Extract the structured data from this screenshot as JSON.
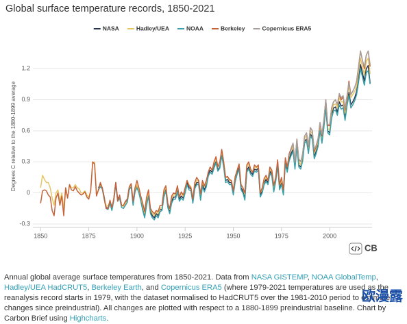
{
  "chart_data": {
    "type": "line",
    "title": "Global surface temperature records, 1850-2021",
    "y_label": "Degrees C relative to the 1880-1899 average",
    "xlim": [
      1846,
      2022
    ],
    "xticks": [
      1850,
      1875,
      1900,
      1925,
      1950,
      1975,
      2000
    ],
    "ylim": [
      -0.3,
      1.4
    ],
    "yticks": [
      -0.3,
      0,
      0.3,
      0.6,
      0.9,
      1.2
    ],
    "grid": true,
    "x": [
      1850,
      1851,
      1852,
      1853,
      1854,
      1855,
      1856,
      1857,
      1858,
      1859,
      1860,
      1861,
      1862,
      1863,
      1864,
      1865,
      1866,
      1867,
      1868,
      1869,
      1870,
      1871,
      1872,
      1873,
      1874,
      1875,
      1876,
      1877,
      1878,
      1879,
      1880,
      1881,
      1882,
      1883,
      1884,
      1885,
      1886,
      1887,
      1888,
      1889,
      1890,
      1891,
      1892,
      1893,
      1894,
      1895,
      1896,
      1897,
      1898,
      1899,
      1900,
      1901,
      1902,
      1903,
      1904,
      1905,
      1906,
      1907,
      1908,
      1909,
      1910,
      1911,
      1912,
      1913,
      1914,
      1915,
      1916,
      1917,
      1918,
      1919,
      1920,
      1921,
      1922,
      1923,
      1924,
      1925,
      1926,
      1927,
      1928,
      1929,
      1930,
      1931,
      1932,
      1933,
      1934,
      1935,
      1936,
      1937,
      1938,
      1939,
      1940,
      1941,
      1942,
      1943,
      1944,
      1945,
      1946,
      1947,
      1948,
      1949,
      1950,
      1951,
      1952,
      1953,
      1954,
      1955,
      1956,
      1957,
      1958,
      1959,
      1960,
      1961,
      1962,
      1963,
      1964,
      1965,
      1966,
      1967,
      1968,
      1969,
      1970,
      1971,
      1972,
      1973,
      1974,
      1975,
      1976,
      1977,
      1978,
      1979,
      1980,
      1981,
      1982,
      1983,
      1984,
      1985,
      1986,
      1987,
      1988,
      1989,
      1990,
      1991,
      1992,
      1993,
      1994,
      1995,
      1996,
      1997,
      1998,
      1999,
      2000,
      2001,
      2002,
      2003,
      2004,
      2005,
      2006,
      2007,
      2008,
      2009,
      2010,
      2011,
      2012,
      2013,
      2014,
      2015,
      2016,
      2017,
      2018,
      2019,
      2020,
      2021
    ],
    "series": [
      {
        "name": "NASA",
        "color": "#263450",
        "values": [
          null,
          null,
          null,
          null,
          null,
          null,
          null,
          null,
          null,
          null,
          null,
          null,
          null,
          null,
          null,
          null,
          null,
          null,
          null,
          null,
          null,
          null,
          null,
          null,
          null,
          null,
          null,
          null,
          null,
          null,
          0.05,
          0.08,
          0.05,
          -0.04,
          -0.14,
          -0.15,
          -0.08,
          -0.16,
          -0.05,
          0.1,
          -0.06,
          -0.03,
          -0.12,
          -0.13,
          -0.1,
          -0.07,
          0.05,
          0.08,
          -0.1,
          0.03,
          0.07,
          0.02,
          -0.05,
          -0.15,
          -0.22,
          -0.1,
          0.0,
          -0.18,
          -0.22,
          -0.24,
          -0.2,
          -0.22,
          -0.16,
          -0.16,
          -0.02,
          0.04,
          -0.12,
          -0.18,
          -0.08,
          -0.04,
          -0.04,
          0.03,
          -0.06,
          -0.03,
          -0.05,
          0.02,
          0.1,
          0.05,
          0.04,
          -0.08,
          0.06,
          0.1,
          0.1,
          -0.05,
          0.08,
          0.03,
          0.08,
          0.18,
          0.22,
          0.2,
          0.26,
          0.3,
          0.22,
          0.25,
          0.38,
          0.27,
          0.12,
          0.13,
          0.1,
          0.1,
          0.0,
          0.13,
          0.2,
          0.25,
          0.05,
          0.02,
          -0.05,
          0.22,
          0.25,
          0.2,
          0.18,
          0.23,
          0.22,
          0.24,
          -0.02,
          0.02,
          0.1,
          0.13,
          0.1,
          0.21,
          0.18,
          0.03,
          0.13,
          0.28,
          0.05,
          0.1,
          0.0,
          0.3,
          0.22,
          0.33,
          0.38,
          0.42,
          0.25,
          0.47,
          0.27,
          0.25,
          0.33,
          0.5,
          0.52,
          0.4,
          0.57,
          0.54,
          0.35,
          0.4,
          0.47,
          0.62,
          0.5,
          0.65,
          0.84,
          0.6,
          0.58,
          0.75,
          0.82,
          0.83,
          0.78,
          0.88,
          0.84,
          0.85,
          0.73,
          0.87,
          0.97,
          0.85,
          0.88,
          0.92,
          0.98,
          1.1,
          1.24,
          1.16,
          1.08,
          1.2,
          1.23,
          1.06
        ]
      },
      {
        "name": "Hadley/UEA",
        "color": "#e6c563",
        "values": [
          0.05,
          0.17,
          0.13,
          0.1,
          0.1,
          0.05,
          -0.05,
          -0.12,
          0.0,
          0.03,
          -0.08,
          0.0,
          -0.15,
          0.05,
          -0.05,
          0.08,
          0.05,
          0.05,
          0.08,
          0.05,
          0.04,
          0.0,
          0.0,
          0.02,
          -0.02,
          -0.04,
          0.02,
          0.28,
          0.3,
          0.0,
          0.02,
          0.07,
          0.04,
          -0.05,
          -0.12,
          -0.13,
          -0.08,
          -0.15,
          -0.05,
          0.08,
          -0.07,
          -0.04,
          -0.12,
          -0.13,
          -0.1,
          -0.08,
          0.05,
          0.07,
          -0.1,
          0.02,
          0.08,
          0.02,
          -0.05,
          -0.12,
          -0.2,
          -0.08,
          0.0,
          -0.16,
          -0.2,
          -0.22,
          -0.18,
          -0.2,
          -0.15,
          -0.14,
          0.0,
          0.06,
          -0.1,
          -0.16,
          -0.05,
          -0.02,
          -0.02,
          0.05,
          -0.04,
          0.0,
          -0.03,
          0.04,
          0.12,
          0.08,
          0.06,
          -0.06,
          0.08,
          0.12,
          0.12,
          -0.02,
          0.1,
          0.06,
          0.1,
          0.2,
          0.25,
          0.22,
          0.28,
          0.33,
          0.25,
          0.28,
          0.4,
          0.3,
          0.15,
          0.15,
          0.12,
          0.12,
          0.02,
          0.15,
          0.22,
          0.27,
          0.08,
          0.05,
          -0.02,
          0.25,
          0.28,
          0.22,
          0.2,
          0.25,
          0.24,
          0.26,
          0.0,
          0.03,
          0.12,
          0.15,
          0.12,
          0.23,
          0.2,
          0.05,
          0.15,
          0.3,
          0.07,
          0.12,
          0.02,
          0.33,
          0.25,
          0.36,
          0.41,
          0.45,
          0.28,
          0.5,
          0.3,
          0.27,
          0.36,
          0.53,
          0.55,
          0.43,
          0.6,
          0.57,
          0.38,
          0.43,
          0.5,
          0.65,
          0.52,
          0.68,
          0.87,
          0.62,
          0.61,
          0.78,
          0.85,
          0.86,
          0.82,
          0.92,
          0.88,
          0.88,
          0.77,
          0.9,
          1.04,
          0.92,
          0.95,
          0.98,
          1.03,
          1.17,
          1.3,
          1.22,
          1.14,
          1.27,
          1.3,
          1.15
        ]
      },
      {
        "name": "NOAA",
        "color": "#3a9fa8",
        "values": [
          null,
          null,
          null,
          null,
          null,
          null,
          null,
          null,
          null,
          null,
          null,
          null,
          null,
          null,
          null,
          null,
          null,
          null,
          null,
          null,
          null,
          null,
          null,
          null,
          null,
          null,
          null,
          null,
          null,
          null,
          0.03,
          0.06,
          0.04,
          -0.06,
          -0.15,
          -0.16,
          -0.1,
          -0.17,
          -0.07,
          0.08,
          -0.08,
          -0.05,
          -0.14,
          -0.15,
          -0.12,
          -0.09,
          0.03,
          0.06,
          -0.12,
          0.01,
          0.05,
          0.0,
          -0.08,
          -0.17,
          -0.24,
          -0.12,
          -0.03,
          -0.2,
          -0.24,
          -0.26,
          -0.22,
          -0.24,
          -0.18,
          -0.17,
          -0.04,
          0.02,
          -0.14,
          -0.2,
          -0.1,
          -0.06,
          -0.06,
          0.01,
          -0.08,
          -0.05,
          -0.07,
          0.0,
          0.08,
          0.03,
          0.02,
          -0.1,
          0.04,
          0.08,
          0.08,
          -0.07,
          0.06,
          0.01,
          0.06,
          0.16,
          0.2,
          0.18,
          0.24,
          0.29,
          0.21,
          0.24,
          0.36,
          0.25,
          0.1,
          0.11,
          0.08,
          0.08,
          -0.02,
          0.11,
          0.18,
          0.23,
          0.03,
          0.0,
          -0.07,
          0.2,
          0.23,
          0.18,
          0.16,
          0.21,
          0.2,
          0.22,
          -0.04,
          0.0,
          0.08,
          0.11,
          0.08,
          0.19,
          0.16,
          0.01,
          0.11,
          0.26,
          0.03,
          0.08,
          -0.02,
          0.28,
          0.2,
          0.31,
          0.36,
          0.4,
          0.23,
          0.45,
          0.25,
          0.23,
          0.31,
          0.48,
          0.5,
          0.38,
          0.55,
          0.52,
          0.33,
          0.38,
          0.45,
          0.6,
          0.48,
          0.63,
          0.82,
          0.58,
          0.56,
          0.72,
          0.79,
          0.8,
          0.75,
          0.85,
          0.81,
          0.82,
          0.7,
          0.84,
          0.94,
          0.82,
          0.85,
          0.89,
          0.95,
          1.07,
          1.2,
          1.12,
          1.04,
          1.16,
          1.18,
          1.05
        ]
      },
      {
        "name": "Berkeley",
        "color": "#c4623b",
        "values": [
          -0.1,
          0.02,
          0.03,
          0.02,
          -0.02,
          -0.04,
          -0.17,
          -0.22,
          -0.05,
          0.0,
          -0.12,
          -0.03,
          -0.22,
          0.05,
          -0.05,
          0.08,
          0.03,
          0.02,
          0.06,
          0.02,
          0.0,
          -0.02,
          -0.01,
          0.01,
          -0.04,
          -0.06,
          0.02,
          0.3,
          0.28,
          -0.03,
          0.03,
          0.1,
          0.05,
          -0.05,
          -0.15,
          -0.15,
          -0.07,
          -0.14,
          -0.06,
          0.1,
          -0.08,
          -0.02,
          -0.12,
          -0.12,
          -0.08,
          -0.06,
          0.06,
          0.09,
          -0.08,
          0.05,
          0.12,
          0.05,
          -0.03,
          -0.1,
          -0.18,
          -0.04,
          0.03,
          -0.15,
          -0.18,
          -0.2,
          -0.17,
          -0.18,
          -0.12,
          -0.12,
          0.03,
          0.07,
          -0.1,
          -0.15,
          -0.03,
          0.0,
          -0.01,
          0.07,
          -0.04,
          0.01,
          -0.02,
          0.05,
          0.12,
          0.07,
          0.05,
          -0.06,
          0.1,
          0.15,
          0.12,
          -0.01,
          0.12,
          0.07,
          0.12,
          0.2,
          0.25,
          0.22,
          0.3,
          0.35,
          0.25,
          0.3,
          0.42,
          0.3,
          0.15,
          0.16,
          0.13,
          0.12,
          0.02,
          0.16,
          0.22,
          0.28,
          0.08,
          0.05,
          0.0,
          0.27,
          0.3,
          0.23,
          0.2,
          0.27,
          0.25,
          0.27,
          0.0,
          0.05,
          0.14,
          0.17,
          0.12,
          0.25,
          0.22,
          0.07,
          0.15,
          0.32,
          0.08,
          0.15,
          0.03,
          0.34,
          0.25,
          0.38,
          0.43,
          0.48,
          0.3,
          0.52,
          0.32,
          0.3,
          0.38,
          0.55,
          0.58,
          0.45,
          0.63,
          0.6,
          0.4,
          0.45,
          0.52,
          0.68,
          0.55,
          0.7,
          0.9,
          0.65,
          0.65,
          0.82,
          0.88,
          0.9,
          0.85,
          0.95,
          0.9,
          0.93,
          0.8,
          0.92,
          1.08,
          0.95,
          0.98,
          1.02,
          1.08,
          1.22,
          1.37,
          1.28,
          1.2,
          1.33,
          1.37,
          1.22
        ]
      },
      {
        "name": "Copernicus ERA5",
        "color": "#a89f9a",
        "values": [
          null,
          null,
          null,
          null,
          null,
          null,
          null,
          null,
          null,
          null,
          null,
          null,
          null,
          null,
          null,
          null,
          null,
          null,
          null,
          null,
          null,
          null,
          null,
          null,
          null,
          null,
          null,
          null,
          null,
          null,
          null,
          null,
          null,
          null,
          null,
          null,
          null,
          null,
          null,
          null,
          null,
          null,
          null,
          null,
          null,
          null,
          null,
          null,
          null,
          null,
          null,
          null,
          null,
          null,
          null,
          null,
          null,
          null,
          null,
          null,
          null,
          null,
          null,
          null,
          null,
          null,
          null,
          null,
          null,
          null,
          null,
          null,
          null,
          null,
          null,
          null,
          null,
          null,
          null,
          null,
          null,
          null,
          null,
          null,
          null,
          null,
          null,
          null,
          null,
          null,
          null,
          null,
          null,
          null,
          null,
          null,
          null,
          null,
          null,
          null,
          null,
          null,
          null,
          null,
          null,
          null,
          null,
          null,
          null,
          null,
          null,
          null,
          null,
          null,
          null,
          null,
          null,
          null,
          null,
          null,
          null,
          null,
          null,
          null,
          null,
          null,
          null,
          null,
          null,
          0.36,
          0.42,
          0.48,
          0.3,
          0.52,
          0.33,
          0.3,
          0.38,
          0.55,
          0.58,
          0.46,
          0.63,
          0.6,
          0.42,
          0.46,
          0.53,
          0.68,
          0.57,
          0.71,
          0.9,
          0.66,
          0.66,
          0.82,
          0.88,
          0.9,
          0.85,
          0.96,
          0.92,
          0.94,
          0.82,
          0.94,
          1.06,
          0.95,
          0.98,
          1.02,
          1.08,
          1.22,
          1.37,
          1.28,
          1.22,
          1.33,
          1.37,
          1.24
        ]
      }
    ],
    "logo": "CB",
    "watermark": "欧漫露",
    "caption": [
      {
        "text": "Annual global average surface temperatures from 1850-2021. Data from ",
        "link": false
      },
      {
        "text": "NASA GISTEMP",
        "link": true
      },
      {
        "text": ", ",
        "link": false
      },
      {
        "text": "NOAA GlobalTemp",
        "link": true
      },
      {
        "text": ", ",
        "link": false
      },
      {
        "text": "Hadley/UEA HadCRUT5",
        "link": true
      },
      {
        "text": ", ",
        "link": false
      },
      {
        "text": "Berkeley Earth",
        "link": true
      },
      {
        "text": ", and ",
        "link": false
      },
      {
        "text": "Copernicus ERA5",
        "link": true
      },
      {
        "text": " (where 1979-2021 temperatures are used as the reanalysis record starts in 1979, with the dataset normalised to HadCRUT5 over the 1981-2010 period to estimate changes since preindustrial). All changes are plotted with respect to a 1880-1899 preindustrial baseline. Chart by Carbon Brief using ",
        "link": false
      },
      {
        "text": "Highcharts",
        "link": true
      },
      {
        "text": ".",
        "link": false
      }
    ]
  }
}
